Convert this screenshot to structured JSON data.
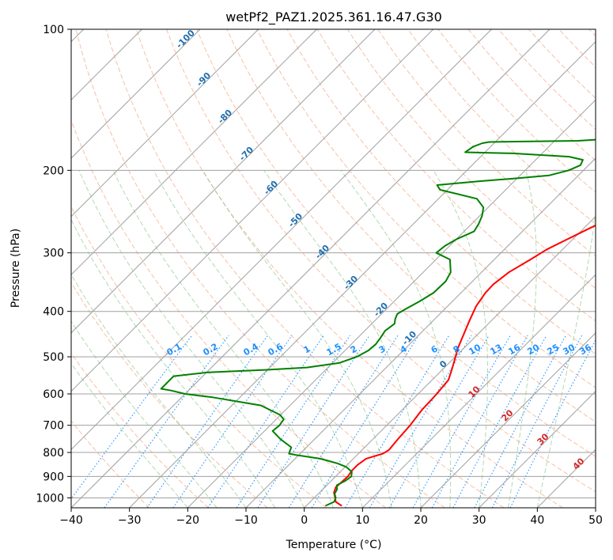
{
  "chart_data": {
    "type": "line",
    "title": "wetPf2_PAZ1.2025.361.16.47.G30",
    "xlabel": "Temperature (°C)",
    "ylabel": "Pressure (hPa)",
    "xlim": [
      -40,
      50
    ],
    "ylim": [
      1050,
      100
    ],
    "y_scale": "log",
    "grid": true,
    "x_ticks": [
      "−40",
      "−30",
      "−20",
      "−10",
      "0",
      "10",
      "20",
      "30",
      "40",
      "50"
    ],
    "x_tick_values": [
      -40,
      -30,
      -20,
      -10,
      0,
      10,
      20,
      30,
      40,
      50
    ],
    "y_ticks": [
      "100",
      "200",
      "300",
      "400",
      "500",
      "600",
      "700",
      "800",
      "900",
      "1000"
    ],
    "y_tick_values": [
      100,
      200,
      300,
      400,
      500,
      600,
      700,
      800,
      900,
      1000
    ],
    "colors": {
      "temperature": "#ff0000",
      "dewpoint": "#008000",
      "isotherm": "#a0a0a0",
      "dry_adiabat": "#f4a582",
      "moist_adiabat": "#7fbf7f",
      "mixing_ratio": "#1e90ff",
      "dry_adiabat_label": "#1f6fb0",
      "moist_adiabat_label": "#d62728"
    },
    "series": [
      {
        "key": "temperature",
        "points": [
          [
            6.1,
            1040
          ],
          [
            4.4,
            1020
          ],
          [
            3.6,
            1000
          ],
          [
            2.5,
            975
          ],
          [
            1.9,
            950
          ],
          [
            2.0,
            925
          ],
          [
            2.1,
            900
          ],
          [
            1.8,
            875
          ],
          [
            1.8,
            850
          ],
          [
            2.2,
            825
          ],
          [
            4.2,
            805
          ],
          [
            4.6,
            790
          ],
          [
            4.3,
            750
          ],
          [
            4.0,
            700
          ],
          [
            3.4,
            650
          ],
          [
            3.2,
            600
          ],
          [
            2.8,
            560
          ],
          [
            1.5,
            530
          ],
          [
            0.3,
            505
          ],
          [
            -1.0,
            480
          ],
          [
            -2.3,
            450
          ],
          [
            -3.7,
            420
          ],
          [
            -5.1,
            390
          ],
          [
            -5.8,
            365
          ],
          [
            -5.9,
            350
          ],
          [
            -5.3,
            330
          ],
          [
            -3.8,
            310
          ],
          [
            -2.7,
            295
          ],
          [
            -1.5,
            285
          ],
          [
            1.1,
            265
          ],
          [
            3.5,
            250
          ],
          [
            6.1,
            237
          ],
          [
            8.9,
            225
          ],
          [
            10.8,
            215
          ],
          [
            11.8,
            208
          ],
          [
            12.6,
            200
          ],
          [
            13.5,
            192
          ],
          [
            14.6,
            185
          ],
          [
            16.8,
            175
          ],
          [
            19.8,
            165
          ],
          [
            20.8,
            160
          ],
          [
            21.6,
            155
          ],
          [
            22.6,
            150
          ],
          [
            23.7,
            145
          ],
          [
            24.8,
            140
          ],
          [
            25.7,
            136
          ],
          [
            26.7,
            132
          ],
          [
            27.8,
            128
          ],
          [
            28.7,
            124
          ],
          [
            29.8,
            120
          ],
          [
            30.1,
            115
          ],
          [
            30.8,
            110
          ],
          [
            31.6,
            106
          ],
          [
            33.2,
            100
          ]
        ]
      },
      {
        "key": "dewpoint",
        "points": [
          [
            3.3,
            1040
          ],
          [
            4.1,
            1020
          ],
          [
            3.7,
            1000
          ],
          [
            2.8,
            980
          ],
          [
            2.5,
            960
          ],
          [
            1.7,
            940
          ],
          [
            2.4,
            920
          ],
          [
            2.7,
            900
          ],
          [
            2.0,
            880
          ],
          [
            0.3,
            860
          ],
          [
            -1.8,
            845
          ],
          [
            -3.7,
            835
          ],
          [
            -5.7,
            825
          ],
          [
            -10.5,
            810
          ],
          [
            -11.9,
            805
          ],
          [
            -12.2,
            795
          ],
          [
            -12.6,
            780
          ],
          [
            -15.8,
            750
          ],
          [
            -18.6,
            720
          ],
          [
            -18.4,
            700
          ],
          [
            -18.7,
            680
          ],
          [
            -20.1,
            665
          ],
          [
            -25.0,
            635
          ],
          [
            -34.7,
            610
          ],
          [
            -40.0,
            600
          ],
          [
            -43.0,
            590
          ],
          [
            -45.0,
            585
          ],
          [
            -45.0,
            550
          ],
          [
            -40.0,
            540
          ],
          [
            -30.0,
            533
          ],
          [
            -23.6,
            527
          ],
          [
            -18.8,
            515
          ],
          [
            -16.9,
            500
          ],
          [
            -16.0,
            485
          ],
          [
            -15.8,
            470
          ],
          [
            -16.1,
            455
          ],
          [
            -16.5,
            440
          ],
          [
            -16.1,
            425
          ],
          [
            -16.8,
            415
          ],
          [
            -17.3,
            405
          ],
          [
            -16.7,
            395
          ],
          [
            -15.6,
            380
          ],
          [
            -14.7,
            365
          ],
          [
            -14.6,
            345
          ],
          [
            -15.3,
            330
          ],
          [
            -17.6,
            310
          ],
          [
            -21.1,
            300
          ],
          [
            -20.8,
            290
          ],
          [
            -19.9,
            280
          ],
          [
            -18.3,
            270
          ],
          [
            -18.8,
            260
          ],
          [
            -19.6,
            250
          ],
          [
            -20.8,
            240
          ],
          [
            -23.4,
            230
          ],
          [
            -31.3,
            220
          ],
          [
            -32.6,
            215
          ],
          [
            -26.0,
            211
          ],
          [
            -20.0,
            208
          ],
          [
            -15.0,
            205
          ],
          [
            -12.5,
            200
          ],
          [
            -11.4,
            195
          ],
          [
            -11.9,
            190
          ],
          [
            -14.8,
            187
          ],
          [
            -25.0,
            184
          ],
          [
            -33.4,
            183
          ],
          [
            -33.0,
            178
          ],
          [
            -32.0,
            175
          ],
          [
            -31.0,
            174
          ],
          [
            -16.0,
            173
          ],
          [
            -10.0,
            171
          ],
          [
            -8.7,
            167
          ],
          [
            -8.4,
            163
          ],
          [
            -8.7,
            158
          ],
          [
            -9.1,
            150
          ],
          [
            -9.3,
            145
          ],
          [
            -9.0,
            138
          ],
          [
            -8.4,
            131
          ],
          [
            -8.2,
            125
          ],
          [
            -8.0,
            118
          ],
          [
            -7.4,
            112
          ],
          [
            -5.6,
            106
          ],
          [
            -4.6,
            102
          ],
          [
            -3.2,
            100
          ]
        ]
      }
    ],
    "dry_adiabat_labels": [
      "-100",
      "-90",
      "-80",
      "-70",
      "-60",
      "-50",
      "-40",
      "-30",
      "-20",
      "-10",
      "0"
    ],
    "moist_adiabat_labels": [
      "10",
      "20",
      "30",
      "40"
    ],
    "mixing_ratio_labels": [
      "0.1",
      "0.2",
      "0.4",
      "0.6",
      "1",
      "1.5",
      "2",
      "3",
      "4",
      "6",
      "8",
      "10",
      "13",
      "16",
      "20",
      "25",
      "30",
      "36"
    ]
  }
}
